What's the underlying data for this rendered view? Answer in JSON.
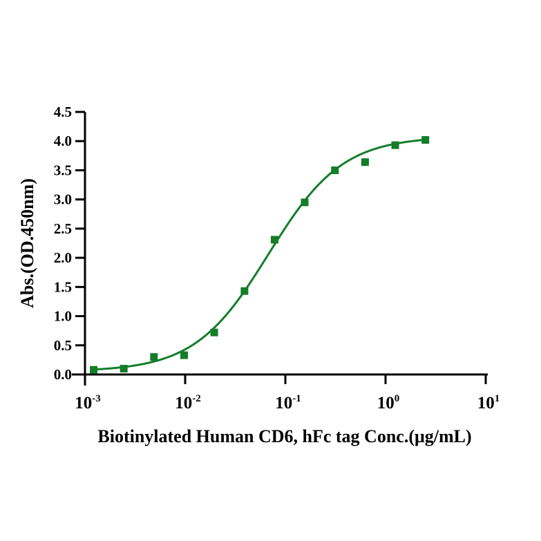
{
  "figure": {
    "background_color": "#ffffff",
    "axis_color": "#000000"
  },
  "chart_data": {
    "type": "scatter",
    "subtype": "sigmoidal-dose-response-fit",
    "title": "",
    "xlabel": "Biotinylated Human CD6, hFc tag Conc.(μg/mL)",
    "ylabel": "Abs.(OD.450nm)",
    "x_scale": "log10",
    "xlim": [
      0.001,
      10
    ],
    "ylim": [
      0,
      4.5
    ],
    "x_tick_exponents": [
      -3,
      -2,
      -1,
      0,
      1
    ],
    "x_tick_base": "10",
    "y_ticks": [
      0.0,
      0.5,
      1.0,
      1.5,
      2.0,
      2.5,
      3.0,
      3.5,
      4.0,
      4.5
    ],
    "grid": false,
    "legend": "none",
    "series": [
      {
        "name": "Biotinylated Human CD6, hFc tag",
        "color": "#147d28",
        "marker": "square",
        "points": [
          {
            "x": 0.00122,
            "y": 0.08
          },
          {
            "x": 0.00244,
            "y": 0.1
          },
          {
            "x": 0.00488,
            "y": 0.3
          },
          {
            "x": 0.00977,
            "y": 0.33
          },
          {
            "x": 0.0195,
            "y": 0.72
          },
          {
            "x": 0.0391,
            "y": 1.43
          },
          {
            "x": 0.0781,
            "y": 2.31
          },
          {
            "x": 0.156,
            "y": 2.95
          },
          {
            "x": 0.3125,
            "y": 3.5
          },
          {
            "x": 0.625,
            "y": 3.64
          },
          {
            "x": 1.25,
            "y": 3.93
          },
          {
            "x": 2.5,
            "y": 4.02
          }
        ],
        "fit": {
          "model": "4PL",
          "bottom": 0.05,
          "top": 4.08,
          "ec50": 0.068,
          "hill": 1.18,
          "x_start": 0.00122,
          "x_end": 2.5
        }
      }
    ]
  }
}
